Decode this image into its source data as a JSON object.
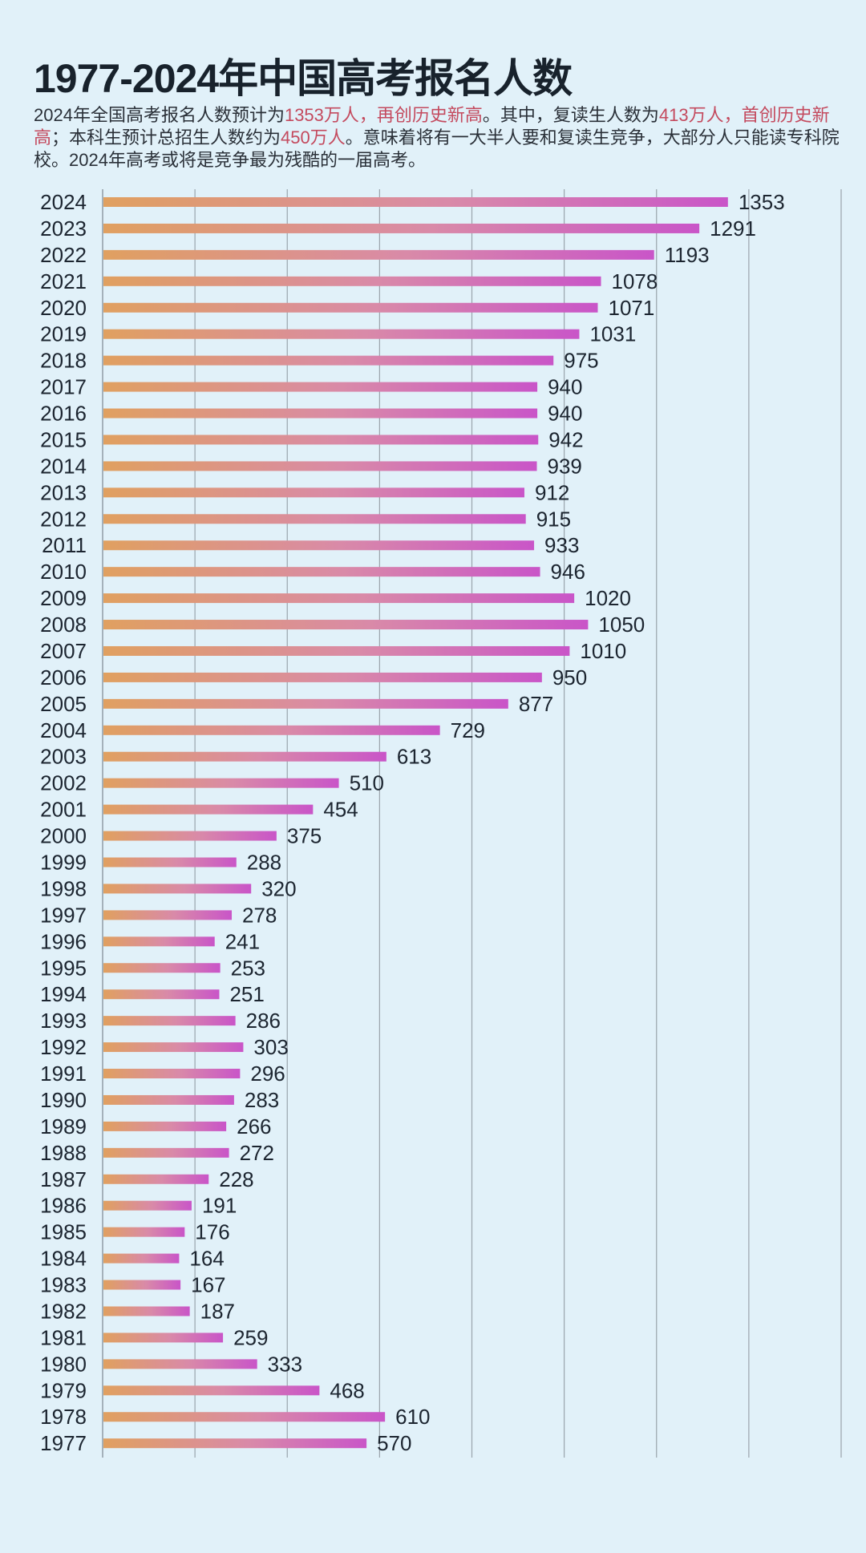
{
  "chart_data": {
    "type": "bar",
    "orientation": "horizontal",
    "title": "1977-2024年中国高考报名人数",
    "subtitle_parts": [
      {
        "text": "2024年全国高考报名人数预计为",
        "highlight": false
      },
      {
        "text": "1353万人，再创历史新高",
        "highlight": true
      },
      {
        "text": "。其中，复读生人数为",
        "highlight": false
      },
      {
        "text": "413万人，首创历史新高",
        "highlight": true
      },
      {
        "text": "；本科生预计总招生人数约为",
        "highlight": false
      },
      {
        "text": "450万人",
        "highlight": true
      },
      {
        "text": "。意味着将有一大半人要和复读生竞争，大部分人只能读专科院校。2024年高考或将是竞争最为残酷的一届高考。",
        "highlight": false
      }
    ],
    "categories": [
      "2024",
      "2023",
      "2022",
      "2021",
      "2020",
      "2019",
      "2018",
      "2017",
      "2016",
      "2015",
      "2014",
      "2013",
      "2012",
      "2011",
      "2010",
      "2009",
      "2008",
      "2007",
      "2006",
      "2005",
      "2004",
      "2003",
      "2002",
      "2001",
      "2000",
      "1999",
      "1998",
      "1997",
      "1996",
      "1995",
      "1994",
      "1993",
      "1992",
      "1991",
      "1990",
      "1989",
      "1988",
      "1987",
      "1986",
      "1985",
      "1984",
      "1983",
      "1982",
      "1981",
      "1980",
      "1979",
      "1978",
      "1977"
    ],
    "values": [
      1353,
      1291,
      1193,
      1078,
      1071,
      1031,
      975,
      940,
      940,
      942,
      939,
      912,
      915,
      933,
      946,
      1020,
      1050,
      1010,
      950,
      877,
      729,
      613,
      510,
      454,
      375,
      288,
      320,
      278,
      241,
      253,
      251,
      286,
      303,
      296,
      283,
      266,
      272,
      228,
      191,
      176,
      164,
      167,
      187,
      259,
      333,
      468,
      610,
      570
    ],
    "xlim": [
      0,
      1600
    ],
    "grid": "vertical lines every 200",
    "tick_labels_shown": false,
    "colors": {
      "bar_start": "#e0a060",
      "bar_mid": "#d98aa8",
      "bar_end": "#c955c8",
      "highlight_text": "#c44a5e",
      "background": "#e1f1f9",
      "grid": "#9aa4ac"
    }
  }
}
